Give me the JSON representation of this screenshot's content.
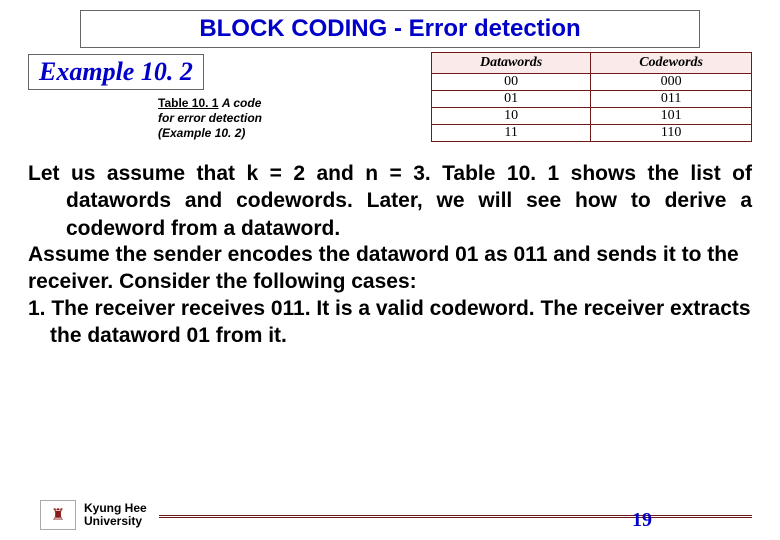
{
  "title": "BLOCK CODING - Error detection",
  "example_label": "Example 10. 2",
  "caption": {
    "lead": "Table 10. 1",
    "rest_line1": "A code",
    "line2": "for error detection",
    "line3": "(Example 10. 2)"
  },
  "table": {
    "headers": [
      "Datawords",
      "Codewords"
    ],
    "rows": [
      [
        "00",
        "000"
      ],
      [
        "01",
        "011"
      ],
      [
        "10",
        "101"
      ],
      [
        "11",
        "110"
      ]
    ],
    "header_bg": "#fbeaea",
    "border_color": "#6e1a1a"
  },
  "paragraphs": {
    "p1": "Let us assume that k = 2 and n = 3. Table 10. 1 shows the list of datawords and codewords. Later, we will see how to derive a codeword from a dataword.",
    "p2": "Assume the sender encodes the dataword 01 as 011 and sends it to the receiver. Consider the following cases:",
    "p3": "1. The receiver receives 011. It is a valid codeword. The receiver extracts the dataword 01 from it."
  },
  "footer": {
    "university_line1": "Kyung Hee",
    "university_line2": "University",
    "page_number": "19",
    "logo_glyph": "♜"
  },
  "colors": {
    "title_text": "#0000c8",
    "body_text": "#000000",
    "rule": "#6e1a1a"
  }
}
